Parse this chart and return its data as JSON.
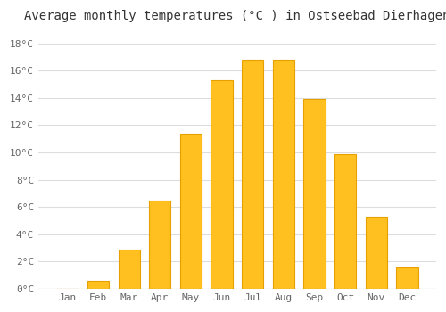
{
  "months": [
    "Jan",
    "Feb",
    "Mar",
    "Apr",
    "May",
    "Jun",
    "Jul",
    "Aug",
    "Sep",
    "Oct",
    "Nov",
    "Dec"
  ],
  "temperatures": [
    0.0,
    0.6,
    2.9,
    6.5,
    11.4,
    15.3,
    16.8,
    16.8,
    13.9,
    9.9,
    5.3,
    1.6
  ],
  "bar_color": "#FFC020",
  "bar_edge_color": "#E8A000",
  "background_color": "#FFFFFF",
  "grid_color": "#DDDDDD",
  "title": "Average monthly temperatures (°C ) in Ostseebad Dierhagen",
  "title_fontsize": 10,
  "tick_label_fontsize": 8,
  "ytick_labels": [
    "0°C",
    "2°C",
    "4°C",
    "6°C",
    "8°C",
    "10°C",
    "12°C",
    "14°C",
    "16°C",
    "18°C"
  ],
  "ytick_values": [
    0,
    2,
    4,
    6,
    8,
    10,
    12,
    14,
    16,
    18
  ],
  "ylim": [
    0,
    19
  ],
  "font_family": "monospace"
}
